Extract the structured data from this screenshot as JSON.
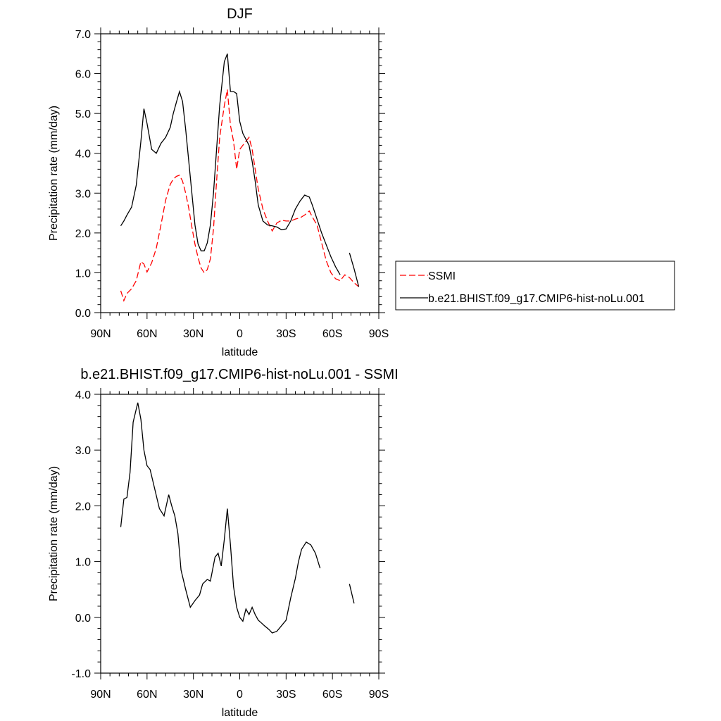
{
  "chart_data": [
    {
      "type": "line",
      "title": "DJF",
      "xlabel": "latitude",
      "ylabel": "Precipitation rate (mm/day)",
      "xlim": [
        90,
        -90
      ],
      "ylim": [
        0,
        7
      ],
      "x_ticks": [
        90,
        60,
        30,
        0,
        -30,
        -60,
        -90
      ],
      "x_tick_labels": [
        "90N",
        "60N",
        "30N",
        "0",
        "30S",
        "60S",
        "90S"
      ],
      "y_ticks": [
        0,
        1,
        2,
        3,
        4,
        5,
        6,
        7
      ],
      "y_tick_labels": [
        "0.0",
        "1.0",
        "2.0",
        "3.0",
        "4.0",
        "5.0",
        "6.0",
        "7.0"
      ],
      "legend_position": "right",
      "series": [
        {
          "name": "SSMI",
          "color": "#ff0000",
          "dash": "dashed",
          "x": [
            77,
            75,
            73,
            70,
            67,
            64,
            62,
            60,
            57,
            54,
            51,
            48,
            45,
            43,
            41,
            39,
            37,
            35,
            33,
            31,
            29,
            27,
            25,
            23,
            21,
            19,
            17,
            15,
            13,
            10,
            8,
            6,
            4,
            2,
            0,
            -2,
            -4,
            -6,
            -8,
            -10,
            -12,
            -15,
            -18,
            -21,
            -24,
            -27,
            -30,
            -33,
            -36,
            -39,
            -42,
            -45,
            -47,
            -50,
            -53,
            -56,
            -59,
            -62,
            -65,
            -68,
            -71,
            -74,
            -77
          ],
          "y": [
            0.55,
            0.3,
            0.48,
            0.6,
            0.8,
            1.28,
            1.22,
            1.02,
            1.25,
            1.62,
            2.2,
            2.82,
            3.22,
            3.35,
            3.42,
            3.45,
            3.3,
            3.0,
            2.62,
            2.15,
            1.72,
            1.38,
            1.12,
            1.0,
            1.08,
            1.35,
            2.1,
            3.3,
            4.4,
            5.2,
            5.6,
            4.7,
            4.3,
            3.6,
            4.1,
            4.2,
            4.3,
            4.4,
            4.1,
            3.6,
            3.1,
            2.6,
            2.3,
            2.05,
            2.25,
            2.32,
            2.3,
            2.3,
            2.35,
            2.38,
            2.45,
            2.55,
            2.4,
            2.2,
            1.75,
            1.3,
            1.0,
            0.85,
            0.8,
            0.95,
            0.88,
            0.75,
            0.65
          ]
        },
        {
          "name": "b.e21.BHIST.f09_g17.CMIP6-hist-noLu.001",
          "color": "#000000",
          "dash": "solid",
          "x": [
            77,
            75,
            73,
            70,
            67,
            64,
            62,
            60,
            57,
            54,
            51,
            48,
            45,
            43,
            41,
            39,
            37,
            35,
            33,
            31,
            29,
            27,
            25,
            23,
            21,
            19,
            17,
            15,
            13,
            10,
            8,
            6,
            4,
            2,
            0,
            -2,
            -4,
            -6,
            -8,
            -10,
            -12,
            -15,
            -18,
            -21,
            -24,
            -27,
            -30,
            -33,
            -36,
            -39,
            -42,
            -45,
            -47,
            -50,
            -53,
            -56,
            -59,
            -62,
            -65,
            null,
            -71,
            -74,
            -77
          ],
          "y": [
            2.18,
            2.3,
            2.45,
            2.65,
            3.2,
            4.3,
            5.12,
            4.75,
            4.1,
            4.0,
            4.25,
            4.4,
            4.65,
            5.0,
            5.28,
            5.55,
            5.3,
            4.6,
            3.8,
            3.0,
            2.2,
            1.72,
            1.55,
            1.55,
            1.75,
            2.2,
            3.0,
            4.1,
            5.2,
            6.3,
            6.5,
            5.55,
            5.55,
            5.5,
            4.8,
            4.5,
            4.35,
            4.2,
            3.8,
            3.3,
            2.7,
            2.3,
            2.2,
            2.18,
            2.15,
            2.08,
            2.1,
            2.3,
            2.6,
            2.8,
            2.95,
            2.9,
            2.7,
            2.35,
            2.0,
            1.7,
            1.4,
            1.15,
            0.95,
            null,
            1.5,
            1.1,
            0.65
          ]
        }
      ]
    },
    {
      "type": "line",
      "title": "b.e21.BHIST.f09_g17.CMIP6-hist-noLu.001 - SSMI",
      "xlabel": "latitude",
      "ylabel": "Precipitation rate (mm/day)",
      "xlim": [
        90,
        -90
      ],
      "ylim": [
        -1,
        4
      ],
      "x_ticks": [
        90,
        60,
        30,
        0,
        -30,
        -60,
        -90
      ],
      "x_tick_labels": [
        "90N",
        "60N",
        "30N",
        "0",
        "30S",
        "60S",
        "90S"
      ],
      "y_ticks": [
        -1,
        0,
        1,
        2,
        3,
        4
      ],
      "y_tick_labels": [
        "-1.0",
        "0.0",
        "1.0",
        "2.0",
        "3.0",
        "4.0"
      ],
      "series": [
        {
          "color": "#000000",
          "dash": "solid",
          "x": [
            77,
            75,
            73,
            71,
            69,
            66,
            64,
            62,
            60,
            58,
            55,
            52,
            49,
            46,
            44,
            42,
            40,
            38,
            35,
            32,
            29,
            26,
            24,
            21,
            19,
            16,
            14,
            12,
            10,
            8,
            6,
            4,
            2,
            0,
            -2,
            -4,
            -6,
            -8,
            -10,
            -12,
            -14,
            -16,
            -19,
            -21,
            -24,
            -27,
            -30,
            -33,
            -36,
            -38,
            -40,
            -43,
            -46,
            -49,
            -52,
            -55,
            -58,
            -61,
            -64,
            -67,
            -71,
            -74
          ],
          "y": [
            1.62,
            2.12,
            2.15,
            2.6,
            3.5,
            3.85,
            3.55,
            3.0,
            2.72,
            2.65,
            2.3,
            1.95,
            1.82,
            2.2,
            2.0,
            1.82,
            1.5,
            0.85,
            0.5,
            0.18,
            0.3,
            0.4,
            0.6,
            0.68,
            0.65,
            1.08,
            1.15,
            0.92,
            1.4,
            1.95,
            1.3,
            0.55,
            0.18,
            0.0,
            -0.07,
            0.15,
            0.05,
            0.18,
            0.05,
            -0.05,
            -0.1,
            -0.15,
            -0.22,
            -0.28,
            -0.25,
            -0.15,
            -0.05,
            0.35,
            0.7,
            1.0,
            1.22,
            1.35,
            1.3,
            1.15,
            0.88,
            null,
            null,
            null,
            null,
            null,
            0.6,
            0.25
          ]
        }
      ]
    }
  ]
}
